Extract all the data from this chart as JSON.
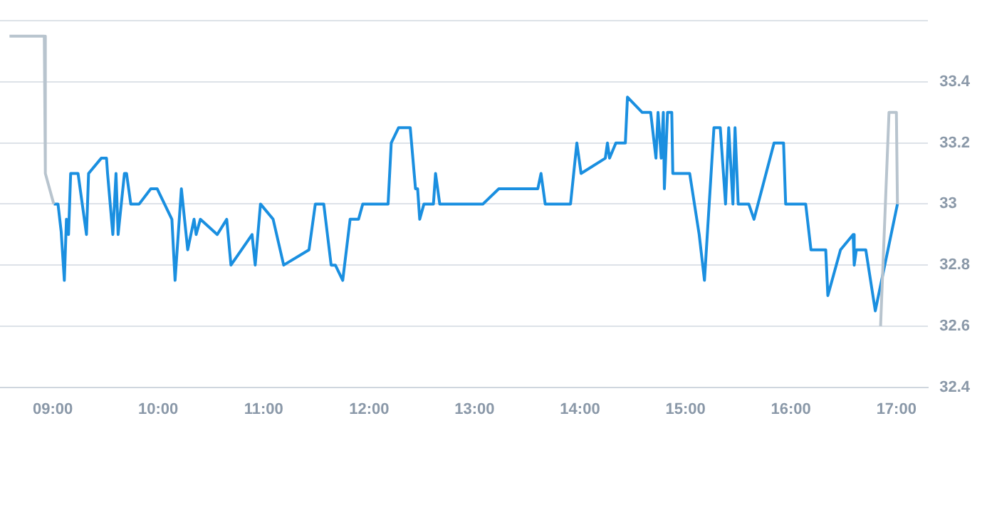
{
  "chart_data": {
    "type": "line",
    "xlim": [
      8.5,
      17.3
    ],
    "xticks": [
      {
        "value": 9,
        "label": "09:00"
      },
      {
        "value": 10,
        "label": "10:00"
      },
      {
        "value": 11,
        "label": "11:00"
      },
      {
        "value": 12,
        "label": "12:00"
      },
      {
        "value": 13,
        "label": "13:00"
      },
      {
        "value": 14,
        "label": "14:00"
      },
      {
        "value": 15,
        "label": "15:00"
      },
      {
        "value": 16,
        "label": "16:00"
      },
      {
        "value": 17,
        "label": "17:00"
      }
    ],
    "ylim": [
      32.4,
      33.6
    ],
    "yticks": [
      32.4,
      32.6,
      32.8,
      33,
      33.2,
      33.4,
      {
        "value": 33.6,
        "label": null
      }
    ],
    "grid": "y",
    "legend": false,
    "marker": "none",
    "line_style": "solid",
    "series": [
      {
        "color": "#b8c4ce",
        "x": [
          8.59,
          8.92,
          8.93,
          9.01
        ],
        "values": [
          33.55,
          33.55,
          33.1,
          33.0
        ]
      },
      {
        "color": "#b8c4ce",
        "x": [
          16.85,
          16.93,
          17.0,
          17.01
        ],
        "values": [
          32.6,
          33.3,
          33.3,
          33.0
        ]
      },
      {
        "color": "#1a8fe0",
        "x": [
          9.01,
          9.05,
          9.08,
          9.11,
          9.13,
          9.15,
          9.17,
          9.24,
          9.32,
          9.34,
          9.46,
          9.51,
          9.52,
          9.57,
          9.6,
          9.62,
          9.68,
          9.7,
          9.74,
          9.82,
          9.93,
          9.99,
          10.13,
          10.16,
          10.22,
          10.28,
          10.34,
          10.36,
          10.4,
          10.56,
          10.65,
          10.69,
          10.89,
          10.92,
          10.97,
          11.09,
          11.19,
          11.43,
          11.49,
          11.57,
          11.64,
          11.68,
          11.75,
          11.82,
          11.9,
          11.94,
          12.18,
          12.21,
          12.28,
          12.39,
          12.44,
          12.46,
          12.48,
          12.52,
          12.61,
          12.63,
          12.67,
          13.08,
          13.23,
          13.6,
          13.63,
          13.67,
          13.91,
          13.97,
          14.01,
          14.24,
          14.26,
          14.28,
          14.34,
          14.43,
          14.45,
          14.59,
          14.67,
          14.72,
          14.74,
          14.77,
          14.79,
          14.8,
          14.83,
          14.87,
          14.88,
          15.04,
          15.13,
          15.18,
          15.27,
          15.33,
          15.38,
          15.41,
          15.45,
          15.47,
          15.5,
          15.6,
          15.65,
          15.84,
          15.93,
          15.95,
          16.14,
          16.19,
          16.33,
          16.35,
          16.47,
          16.59,
          16.6,
          16.62,
          16.71,
          16.8,
          17.01
        ],
        "values": [
          33.0,
          33.0,
          32.91,
          32.75,
          32.95,
          32.9,
          33.1,
          33.1,
          32.9,
          33.1,
          33.15,
          33.15,
          33.1,
          32.9,
          33.1,
          32.9,
          33.1,
          33.1,
          33.0,
          33.0,
          33.05,
          33.05,
          32.95,
          32.75,
          33.05,
          32.85,
          32.95,
          32.9,
          32.95,
          32.9,
          32.95,
          32.8,
          32.9,
          32.8,
          33.0,
          32.95,
          32.8,
          32.85,
          33.0,
          33.0,
          32.8,
          32.8,
          32.75,
          32.95,
          32.95,
          33.0,
          33.0,
          33.2,
          33.25,
          33.25,
          33.05,
          33.05,
          32.95,
          33.0,
          33.0,
          33.1,
          33.0,
          33.0,
          33.05,
          33.05,
          33.1,
          33.0,
          33.0,
          33.2,
          33.1,
          33.15,
          33.2,
          33.15,
          33.2,
          33.2,
          33.35,
          33.3,
          33.3,
          33.15,
          33.3,
          33.15,
          33.3,
          33.05,
          33.3,
          33.3,
          33.1,
          33.1,
          32.9,
          32.75,
          33.25,
          33.25,
          33.0,
          33.25,
          33.0,
          33.25,
          33.0,
          33.0,
          32.95,
          33.2,
          33.2,
          33.0,
          33.0,
          32.85,
          32.85,
          32.7,
          32.85,
          32.9,
          32.8,
          32.85,
          32.85,
          32.65,
          33.0
        ]
      }
    ]
  }
}
